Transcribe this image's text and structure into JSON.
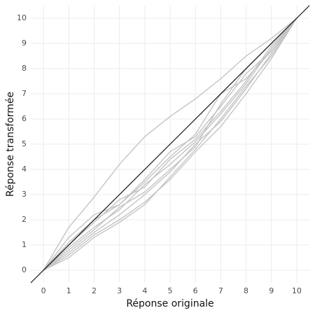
{
  "chart_data": {
    "type": "line",
    "x_label": "Réponse originale",
    "y_label": "Réponse transformée",
    "x": [
      0,
      1,
      2,
      3,
      4,
      5,
      6,
      7,
      8,
      9,
      10
    ],
    "series": [
      {
        "color": "#c4c4c4",
        "values": [
          0,
          1.7,
          2.9,
          4.2,
          5.3,
          6.1,
          6.8,
          7.6,
          8.5,
          9.2,
          10
        ]
      },
      {
        "color": "#c4c4c4",
        "values": [
          0,
          1.3,
          2.2,
          2.6,
          3.5,
          4.5,
          5.4,
          7.0,
          7.6,
          8.7,
          10
        ]
      },
      {
        "color": "#c4c4c4",
        "values": [
          0,
          1.0,
          1.9,
          2.8,
          3.3,
          4.4,
          5.2,
          6.3,
          7.5,
          8.9,
          10
        ]
      },
      {
        "color": "#c4c4c4",
        "values": [
          0,
          0.8,
          1.6,
          2.5,
          3.1,
          4.0,
          4.9,
          6.6,
          8.0,
          9.0,
          10
        ]
      },
      {
        "color": "#c4c4c4",
        "values": [
          0,
          0.7,
          1.5,
          2.2,
          3.0,
          3.9,
          5.0,
          5.9,
          7.2,
          8.6,
          10
        ]
      },
      {
        "color": "#c4c4c4",
        "values": [
          0,
          0.6,
          1.4,
          2.0,
          2.7,
          3.6,
          4.7,
          5.7,
          7.0,
          8.4,
          10
        ]
      },
      {
        "color": "#c4c4c4",
        "values": [
          0,
          0.5,
          1.3,
          1.9,
          2.6,
          3.7,
          4.8,
          6.0,
          7.3,
          8.5,
          10
        ]
      },
      {
        "color": "#c4c4c4",
        "values": [
          0,
          0.9,
          1.7,
          2.4,
          3.4,
          4.2,
          5.1,
          6.2,
          7.4,
          8.8,
          10
        ]
      },
      {
        "color": "#c4c4c4",
        "values": [
          0,
          1.1,
          2.0,
          2.6,
          3.6,
          4.7,
          5.3,
          6.5,
          7.8,
          8.7,
          10
        ]
      }
    ],
    "reference_line": {
      "slope": 1,
      "intercept": 0,
      "color": "#111111"
    },
    "xlim": [
      -0.5,
      10.5
    ],
    "ylim": [
      -0.5,
      10.5
    ],
    "xticks": [
      0,
      1,
      2,
      3,
      4,
      5,
      6,
      7,
      8,
      9,
      10
    ],
    "yticks": [
      0,
      1,
      2,
      3,
      4,
      5,
      6,
      7,
      8,
      9,
      10
    ],
    "grid": true
  }
}
